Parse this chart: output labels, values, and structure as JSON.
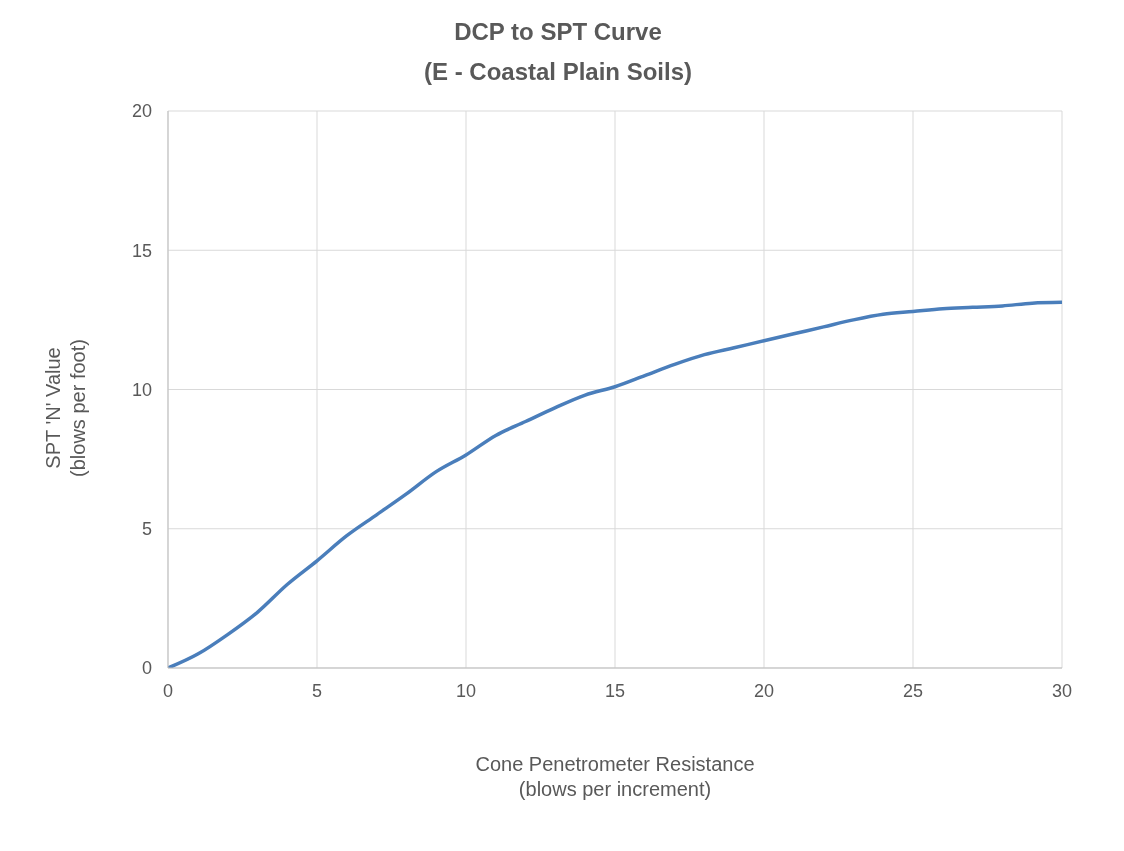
{
  "chart_data": {
    "type": "line",
    "title": "DCP to SPT Curve",
    "subtitle": "(E - Coastal Plain Soils)",
    "xlabel": "Cone Penetrometer Resistance\n(blows per increment)",
    "ylabel": "SPT 'N' Value\n(blows per foot)",
    "x": [
      0,
      1,
      2,
      3,
      4,
      5,
      6,
      7,
      8,
      9,
      10,
      11,
      12,
      13,
      14,
      15,
      16,
      17,
      18,
      19,
      20,
      21,
      22,
      23,
      24,
      25,
      26,
      27,
      28,
      29,
      30
    ],
    "series": [
      {
        "color": "#4a7ebb",
        "values": [
          0,
          0.5,
          1.2,
          2.0,
          3.0,
          3.85,
          4.75,
          5.5,
          6.25,
          7.05,
          7.65,
          8.35,
          8.85,
          9.35,
          9.8,
          10.1,
          10.5,
          10.9,
          11.25,
          11.5,
          11.75,
          12.0,
          12.25,
          12.5,
          12.7,
          12.8,
          12.9,
          12.95,
          13.0,
          13.1,
          13.13
        ]
      }
    ],
    "xlim": [
      0,
      30
    ],
    "xticks": [
      0,
      5,
      10,
      15,
      20,
      25,
      30
    ],
    "ylim": [
      0,
      20
    ],
    "yticks": [
      0,
      5,
      10,
      15,
      20
    ],
    "grid": true,
    "legend": false,
    "marker": "none",
    "line_style": "solid"
  }
}
